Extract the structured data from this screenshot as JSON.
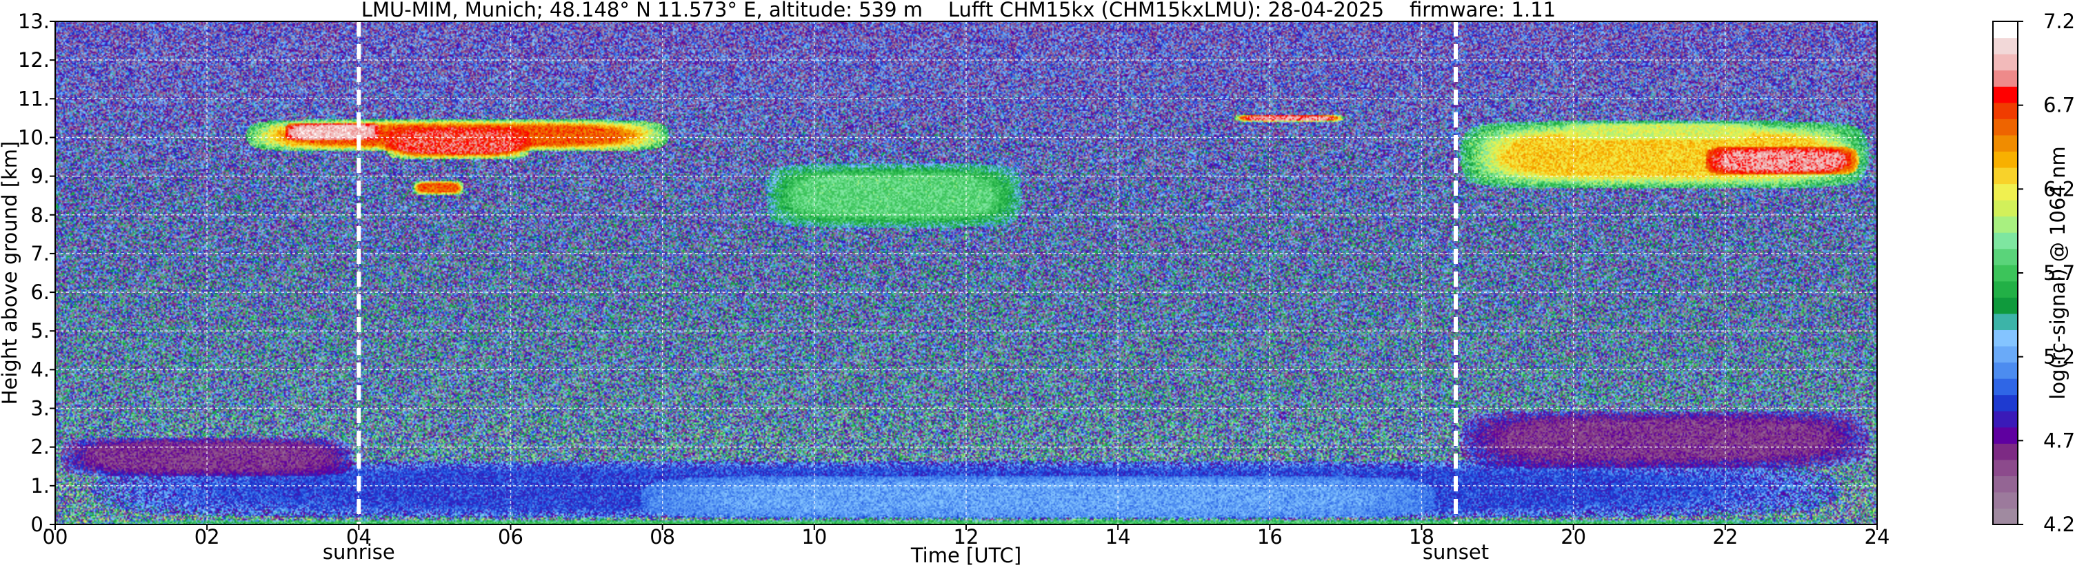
{
  "chart_data": {
    "type": "heatmap",
    "title": "LMU-MIM, Munich; 48.148° N 11.573° E, altitude: 539 m    Lufft CHM15kx (CHM15kxLMU): 28-04-2025    firmware: 1.11",
    "xlabel": "Time [UTC]",
    "ylabel": "Height above ground [km]",
    "xlim": [
      0,
      24
    ],
    "ylim": [
      0,
      13
    ],
    "x_ticks": [
      {
        "value": 0,
        "label": "00"
      },
      {
        "value": 2,
        "label": "02"
      },
      {
        "value": 4,
        "label": "04"
      },
      {
        "value": 6,
        "label": "06"
      },
      {
        "value": 8,
        "label": "08"
      },
      {
        "value": 10,
        "label": "10"
      },
      {
        "value": 12,
        "label": "12"
      },
      {
        "value": 14,
        "label": "14"
      },
      {
        "value": 16,
        "label": "16"
      },
      {
        "value": 18,
        "label": "18"
      },
      {
        "value": 20,
        "label": "20"
      },
      {
        "value": 22,
        "label": "22"
      },
      {
        "value": 24,
        "label": "24"
      }
    ],
    "y_ticks": [
      {
        "value": 0,
        "label": "0."
      },
      {
        "value": 1,
        "label": "1."
      },
      {
        "value": 2,
        "label": "2."
      },
      {
        "value": 3,
        "label": "3."
      },
      {
        "value": 4,
        "label": "4."
      },
      {
        "value": 5,
        "label": "5."
      },
      {
        "value": 6,
        "label": "6."
      },
      {
        "value": 7,
        "label": "7."
      },
      {
        "value": 8,
        "label": "8."
      },
      {
        "value": 9,
        "label": "9."
      },
      {
        "value": 10,
        "label": "10."
      },
      {
        "value": 11,
        "label": "11."
      },
      {
        "value": 12,
        "label": "12."
      },
      {
        "value": 13,
        "label": "13."
      }
    ],
    "grid": true,
    "markers": [
      {
        "label": "sunrise",
        "time": 4.0
      },
      {
        "label": "sunset",
        "time": 18.45
      }
    ],
    "colorbar": {
      "label": "log(rc-signal) @ 1064 nm",
      "range": [
        4.2,
        7.2
      ],
      "tick_values": [
        4.2,
        4.7,
        5.2,
        5.7,
        6.2,
        6.7,
        7.2
      ],
      "tick_labels": [
        "4.2",
        "4.7",
        "5.2",
        "5.7",
        "6.2",
        "6.7",
        "7.2"
      ],
      "position": "right"
    },
    "layers": [
      {
        "feature": "boundary layer aerosol",
        "t0": 0,
        "t1": 24,
        "h0": 0.1,
        "h1": 1.7,
        "level": 4.95
      },
      {
        "feature": "near-surface layer",
        "t0": 0,
        "t1": 24,
        "h0": 0.0,
        "h1": 0.1,
        "level": 5.75
      },
      {
        "feature": "convective boundary layer",
        "t0": 7.5,
        "t1": 18.4,
        "h0": 0.1,
        "h1": 1.3,
        "level": 5.2
      },
      {
        "feature": "residual layer",
        "t0": 0,
        "t1": 4.0,
        "h0": 1.2,
        "h1": 2.3,
        "level": 4.6
      },
      {
        "feature": "evening residual layer",
        "t0": 18.4,
        "t1": 24,
        "h0": 1.4,
        "h1": 3.0,
        "level": 4.6
      },
      {
        "feature": "cirrus",
        "t0": 2.4,
        "t1": 8.2,
        "h0": 9.6,
        "h1": 10.5,
        "level": 6.6
      },
      {
        "feature": "cirrus",
        "t0": 3.0,
        "t1": 4.3,
        "h0": 9.9,
        "h1": 10.4,
        "level": 7.0
      },
      {
        "feature": "cirrus",
        "t0": 4.3,
        "t1": 6.3,
        "h0": 9.4,
        "h1": 10.3,
        "level": 6.8
      },
      {
        "feature": "cirrus",
        "t0": 4.7,
        "t1": 5.4,
        "h0": 8.5,
        "h1": 8.9,
        "level": 6.6
      },
      {
        "feature": "cirrus",
        "t0": 9.3,
        "t1": 12.8,
        "h0": 7.6,
        "h1": 9.4,
        "level": 5.8
      },
      {
        "feature": "cirrus",
        "t0": 15.5,
        "t1": 17.0,
        "h0": 10.4,
        "h1": 10.6,
        "level": 6.9
      },
      {
        "feature": "cirrus",
        "t0": 18.4,
        "t1": 24.0,
        "h0": 8.6,
        "h1": 10.5,
        "level": 6.3
      },
      {
        "feature": "cirrus",
        "t0": 19.8,
        "t1": 22.4,
        "h0": 9.9,
        "h1": 10.4,
        "level": 6.1
      },
      {
        "feature": "cirrus",
        "t0": 21.7,
        "t1": 23.8,
        "h0": 9.0,
        "h1": 9.8,
        "level": 6.9
      }
    ],
    "palette": [
      "#a08aa0",
      "#9c7a9c",
      "#946594",
      "#8c4a8c",
      "#7d2a84",
      "#5f00a0",
      "#3a1ab8",
      "#1e3ad0",
      "#2f66e6",
      "#4c8cf0",
      "#6aaaf8",
      "#84c4ff",
      "#3cb4a8",
      "#0f9a3c",
      "#22b046",
      "#3cc45a",
      "#5ad47a",
      "#7ee6a0",
      "#a8f080",
      "#d2f05a",
      "#f0f050",
      "#f8d22a",
      "#f8b000",
      "#f08c00",
      "#ee6400",
      "#f03c00",
      "#ff0000",
      "#ee8a8a",
      "#f2baba",
      "#f2d8d8",
      "#ffffff"
    ]
  }
}
